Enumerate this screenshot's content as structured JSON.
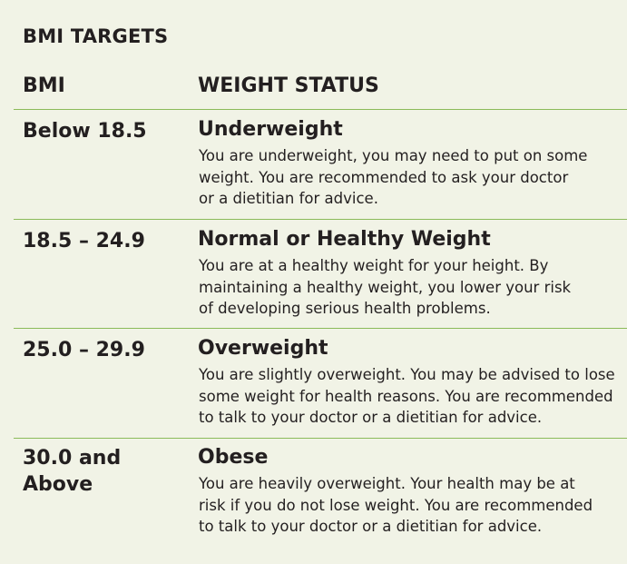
{
  "title": "BMI TARGETS",
  "headers": {
    "bmi": "BMI",
    "status": "WEIGHT STATUS"
  },
  "rows": [
    {
      "bmi": "Below 18.5",
      "status": "Underweight",
      "lines": [
        "You are underweight, you may need to put on some",
        "weight. You are recommended to ask your doctor",
        "or a dietitian for advice."
      ]
    },
    {
      "bmi": "18.5 – 24.9",
      "status": "Normal or Healthy Weight",
      "lines": [
        "You are at a healthy weight for your height. By",
        "maintaining a healthy weight, you lower your risk",
        "of developing serious health problems."
      ]
    },
    {
      "bmi": "25.0 – 29.9",
      "status": "Overweight",
      "lines": [
        "You are slightly overweight. You may be advised to lose",
        "some weight for health reasons. You are recommended",
        "to talk to your doctor or a dietitian for advice."
      ]
    },
    {
      "bmi": "30.0 and Above",
      "bmi_lines": [
        "30.0 and",
        "Above"
      ],
      "status": "Obese",
      "lines": [
        "You are heavily overweight. Your health may be at",
        "risk if you do not lose weight. You are recommended",
        "to talk to your doctor or a dietitian for advice."
      ]
    }
  ],
  "colors": {
    "background": "#f1f3e6",
    "divider": "#8bbb5a",
    "text": "#231f20"
  }
}
